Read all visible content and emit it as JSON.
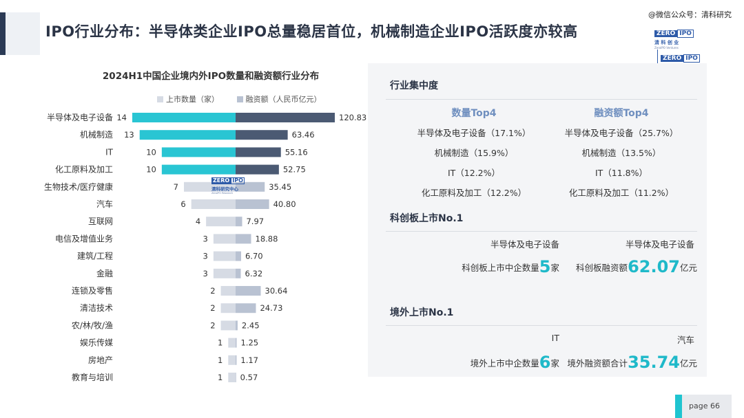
{
  "header": {
    "title": "IPO行业分布：半导体类企业IPO总量稳居首位，机械制造企业IPO活跃度亦较高",
    "watermark": "@微信公众号：清科研究",
    "logo": {
      "zero": "ZERO",
      "ipo": "IPO",
      "cn": "清 科 创 业",
      "cn2": "清科研究中心",
      "en": "ZeroIPO Ventures",
      "en2": "ZeroIPO Research"
    }
  },
  "chart_data": {
    "type": "bar",
    "title": "2024H1中国企业境内外IPO数量和融资额行业分布",
    "legend_position": "top",
    "categories": [
      "半导体及电子设备",
      "机械制造",
      "IT",
      "化工原料及加工",
      "生物技术/医疗健康",
      "汽车",
      "互联网",
      "电信及增值业务",
      "建筑/工程",
      "金融",
      "连锁及零售",
      "清洁技术",
      "农/林/牧/渔",
      "娱乐传媒",
      "房地产",
      "教育与培训"
    ],
    "series": [
      {
        "name": "上市数量（家）",
        "direction": "left",
        "color_top": "#29c5d3",
        "color_other": "#d6dbe4",
        "values": [
          14,
          13,
          10,
          10,
          7,
          6,
          4,
          3,
          3,
          3,
          2,
          2,
          2,
          1,
          1,
          1
        ],
        "labels": [
          "14",
          "13",
          "10",
          "10",
          "7",
          "6",
          "4",
          "3",
          "3",
          "3",
          "2",
          "2",
          "2",
          "1",
          "1",
          "1"
        ]
      },
      {
        "name": "融资额（人民币亿元）",
        "direction": "right",
        "color_top": "#4b5a73",
        "color_other": "#b9c2d2",
        "values": [
          120.83,
          63.46,
          55.16,
          52.75,
          35.45,
          40.8,
          7.97,
          18.88,
          6.7,
          6.32,
          30.64,
          24.73,
          2.45,
          1.25,
          1.17,
          0.57
        ],
        "labels": [
          "120.83",
          "63.46",
          "55.16",
          "52.75",
          "35.45",
          "40.80",
          "7.97",
          "18.88",
          "6.70",
          "6.32",
          "30.64",
          "24.73",
          "2.45",
          "1.25",
          "1.17",
          "0.57"
        ]
      }
    ],
    "highlight_top_n": 4
  },
  "panel": {
    "concentration": {
      "title": "行业集中度",
      "count_head": "数量Top4",
      "amount_head": "融资额Top4",
      "count_items": [
        "半导体及电子设备（17.1%）",
        "机械制造（15.9%）",
        "IT（12.2%）",
        "化工原料及加工（12.2%）"
      ],
      "amount_items": [
        "半导体及电子设备（25.7%）",
        "机械制造（13.5%）",
        "IT（11.8%）",
        "化工原料及加工（11.2%）"
      ]
    },
    "star": {
      "title": "科创板上市No.1",
      "count_industry": "半导体及电子设备",
      "amount_industry": "半导体及电子设备",
      "count_prefix": "科创板上市中企数量",
      "count_value": "5",
      "count_suffix": "家",
      "amount_prefix": "科创板融资额",
      "amount_value": "62.07",
      "amount_suffix": "亿元"
    },
    "overseas": {
      "title": "境外上市No.1",
      "count_industry": "IT",
      "amount_industry": "汽车",
      "count_prefix": "境外上市中企数量",
      "count_value": "6",
      "count_suffix": "家",
      "amount_prefix": "境外融资额合计",
      "amount_value": "35.74",
      "amount_suffix": "亿元"
    }
  },
  "footer": {
    "page_label": "page  66"
  }
}
